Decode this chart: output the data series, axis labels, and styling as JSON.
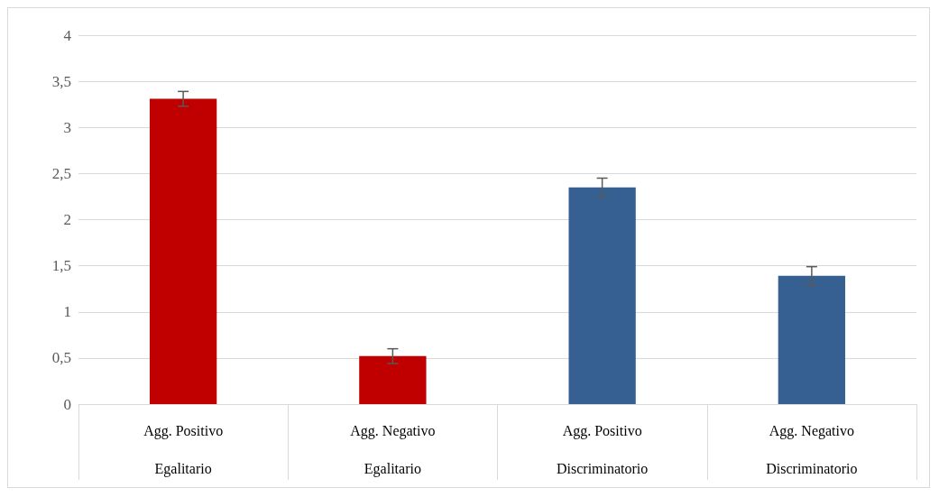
{
  "chart_data": {
    "type": "bar",
    "categories": [
      "Agg. Positivo\nEgalitario",
      "Agg. Negativo\nEgalitario",
      "Agg. Positivo\nDiscriminatorio",
      "Agg. Negativo\nDiscriminatorio"
    ],
    "values": [
      3.31,
      0.52,
      2.35,
      1.39
    ],
    "colors": [
      "#c00000",
      "#c00000",
      "#376092",
      "#376092"
    ],
    "errors": [
      0.08,
      0.08,
      0.1,
      0.1
    ],
    "ylim": [
      0,
      4
    ],
    "yticks": [
      0,
      {
        "value": 0.5,
        "label": "0,5"
      },
      1,
      {
        "value": 1.5,
        "label": "1,5"
      },
      2,
      {
        "value": 2.5,
        "label": "2,5"
      },
      3,
      {
        "value": 3.5,
        "label": "3,5"
      },
      4
    ],
    "grid": "y"
  }
}
